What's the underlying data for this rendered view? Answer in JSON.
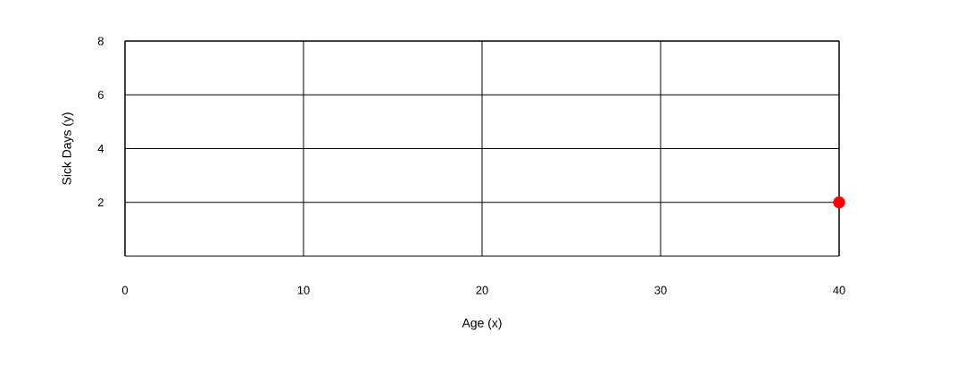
{
  "chart_data": {
    "type": "scatter",
    "xlabel": "Age (x)",
    "ylabel": "Sick Days (y)",
    "x": [
      40
    ],
    "values": [
      2
    ],
    "color": "#ff0000",
    "marker": "circle",
    "xlim": [
      0,
      40
    ],
    "ylim": [
      0,
      8
    ],
    "xticks": [
      0,
      10,
      20,
      30,
      40
    ],
    "yticks": [
      2,
      4,
      6,
      8
    ],
    "grid": true
  }
}
